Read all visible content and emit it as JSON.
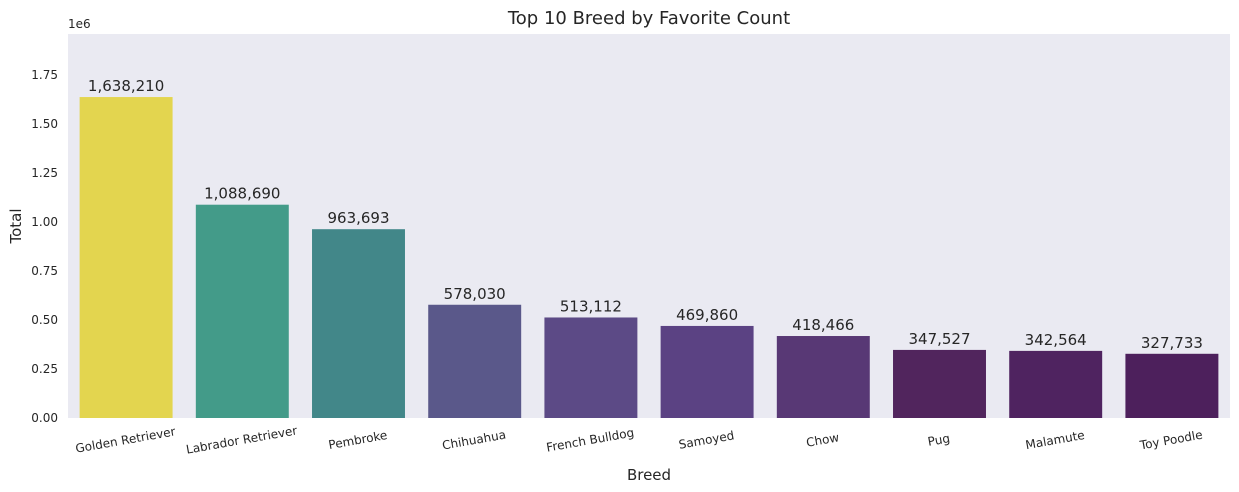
{
  "chart_data": {
    "type": "bar",
    "title": "Top 10 Breed by Favorite Count",
    "xlabel": "Breed",
    "ylabel": "Total",
    "offset_text": "1e6",
    "ylim": [
      0,
      1.96
    ],
    "yticks": [
      "0.00",
      "0.25",
      "0.50",
      "0.75",
      "1.00",
      "1.25",
      "1.50",
      "1.75"
    ],
    "ytick_values": [
      0,
      0.25,
      0.5,
      0.75,
      1.0,
      1.25,
      1.5,
      1.75
    ],
    "grid": false,
    "background": "#eaeaf2",
    "categories": [
      "Golden Retriever",
      "Labrador Retriever",
      "Pembroke",
      "Chihuahua",
      "French Bulldog",
      "Samoyed",
      "Chow",
      "Pug",
      "Malamute",
      "Toy Poodle"
    ],
    "values": [
      1638210,
      1088690,
      963693,
      578030,
      513112,
      469860,
      418466,
      347527,
      342564,
      327733
    ],
    "value_labels": [
      "1,638,210",
      "1,088,690",
      "963,693",
      "578,030",
      "513,112",
      "469,860",
      "418,466",
      "347,527",
      "342,564",
      "327,733"
    ],
    "colors": [
      "#e3d54f",
      "#439b89",
      "#428789",
      "#5a588a",
      "#5c4a86",
      "#5b4283",
      "#583875",
      "#51255d",
      "#4f2360",
      "#4d205c"
    ]
  }
}
